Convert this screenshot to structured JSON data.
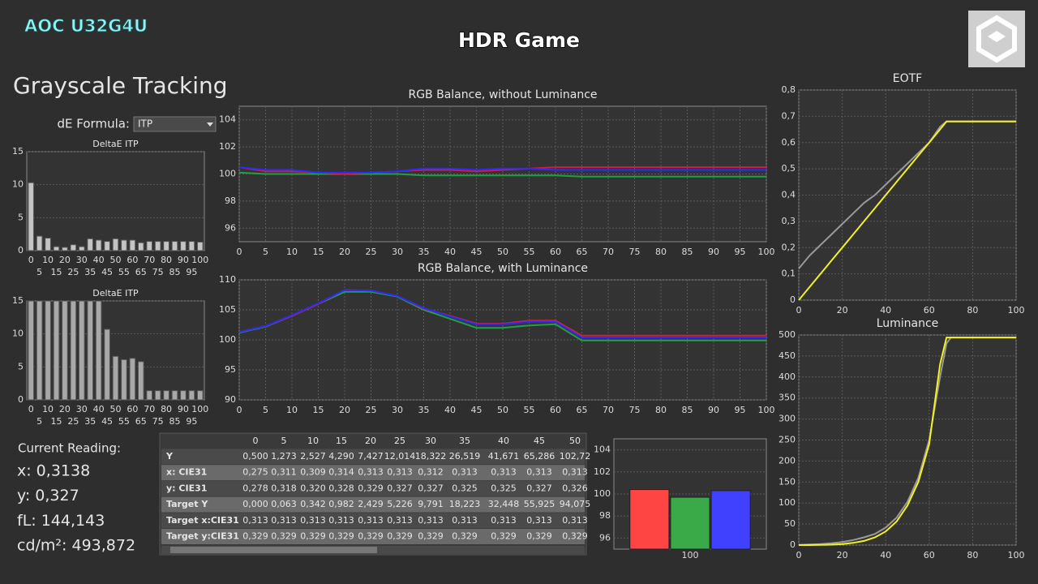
{
  "header": {
    "monitor": "AOC U32G4U",
    "mode": "HDR Game"
  },
  "panel": {
    "title": "Grayscale Tracking",
    "de_formula_label": "dE Formula:",
    "de_formula": "ITP"
  },
  "reading": {
    "title": "Current Reading:",
    "lines": [
      "x: 0,3138",
      "y: 0,327",
      "fL: 144,143",
      "cd/m²: 493,872"
    ]
  },
  "table": {
    "header": [
      "0",
      "5",
      "10",
      "15",
      "20",
      "25",
      "30",
      "35",
      "40",
      "45",
      "50"
    ],
    "rows": [
      [
        "Y",
        "0,500",
        "1,273",
        "2,527",
        "4,290",
        "7,427",
        "12,014",
        "18,322",
        "26,519",
        "41,671",
        "65,286",
        "102,72"
      ],
      [
        "x: CIE31",
        "0,275",
        "0,311",
        "0,309",
        "0,314",
        "0,313",
        "0,313",
        "0,312",
        "0,313",
        "0,313",
        "0,313",
        "0,313"
      ],
      [
        "y: CIE31",
        "0,278",
        "0,318",
        "0,320",
        "0,328",
        "0,329",
        "0,327",
        "0,327",
        "0,325",
        "0,325",
        "0,327",
        "0,326"
      ],
      [
        "Target Y",
        "0,000",
        "0,063",
        "0,342",
        "0,982",
        "2,429",
        "5,226",
        "9,791",
        "18,223",
        "32,448",
        "55,925",
        "94,075"
      ],
      [
        "Target x:CIE31",
        "0,313",
        "0,313",
        "0,313",
        "0,313",
        "0,313",
        "0,313",
        "0,313",
        "0,313",
        "0,313",
        "0,313",
        "0,313"
      ],
      [
        "Target y:CIE31",
        "0,329",
        "0,329",
        "0,329",
        "0,329",
        "0,329",
        "0,329",
        "0,329",
        "0,329",
        "0,329",
        "0,329",
        "0,329"
      ]
    ]
  },
  "chart_data": [
    {
      "type": "bar",
      "title": "DeltaE ITP",
      "categories": [
        "0",
        "5",
        "10",
        "15",
        "20",
        "25",
        "30",
        "35",
        "40",
        "45",
        "50",
        "55",
        "60",
        "65",
        "70",
        "75",
        "80",
        "85",
        "90",
        "95",
        "100"
      ],
      "values": [
        10.3,
        2.2,
        1.9,
        0.6,
        0.5,
        0.9,
        0.6,
        1.8,
        1.6,
        1.4,
        1.8,
        1.6,
        1.6,
        1.2,
        1.4,
        1.4,
        1.4,
        1.4,
        1.4,
        1.4,
        1.3
      ],
      "color": "#c4c4c4",
      "ylim": [
        0,
        15
      ],
      "yticks": [
        0,
        5,
        10,
        15
      ],
      "grid": true
    },
    {
      "type": "bar",
      "title": "DeltaE ITP",
      "categories": [
        "0",
        "5",
        "10",
        "15",
        "20",
        "25",
        "30",
        "35",
        "40",
        "45",
        "50",
        "55",
        "60",
        "65",
        "70",
        "75",
        "80",
        "85",
        "90",
        "95",
        "100"
      ],
      "values": [
        15,
        15,
        15,
        15,
        15,
        15,
        15,
        15,
        15,
        10.7,
        6.6,
        6.1,
        6.3,
        5.8,
        1.4,
        1.4,
        1.4,
        1.4,
        1.4,
        1.4,
        1.4
      ],
      "color": "#a8a8a8",
      "ylim": [
        0,
        15
      ],
      "yticks": [
        0,
        5,
        10,
        15
      ],
      "grid": true
    },
    {
      "type": "line",
      "title": "RGB Balance, without Luminance",
      "x": [
        0,
        5,
        10,
        15,
        20,
        25,
        30,
        35,
        40,
        45,
        50,
        55,
        60,
        65,
        70,
        75,
        80,
        85,
        90,
        95,
        100
      ],
      "series": [
        {
          "color": "#1fa045",
          "values": [
            100.1,
            100.0,
            100.0,
            100.0,
            100.0,
            100.0,
            100.0,
            99.9,
            99.9,
            99.9,
            99.9,
            99.9,
            99.9,
            99.8,
            99.8,
            99.8,
            99.8,
            99.8,
            99.8,
            99.8,
            99.8
          ]
        },
        {
          "color": "#d0203a",
          "values": [
            100.5,
            100.2,
            100.2,
            100.1,
            100.0,
            100.1,
            100.2,
            100.3,
            100.3,
            100.2,
            100.3,
            100.4,
            100.5,
            100.5,
            100.5,
            100.5,
            100.5,
            100.5,
            100.5,
            100.5,
            100.5
          ]
        },
        {
          "color": "#2b2bff",
          "values": [
            100.5,
            100.3,
            100.3,
            100.1,
            100.1,
            100.1,
            100.2,
            100.4,
            100.4,
            100.3,
            100.4,
            100.4,
            100.3,
            100.3,
            100.3,
            100.3,
            100.3,
            100.3,
            100.3,
            100.3,
            100.3
          ]
        }
      ],
      "xlim": [
        0,
        100
      ],
      "xticks": [
        0,
        5,
        10,
        15,
        20,
        25,
        30,
        35,
        40,
        45,
        50,
        55,
        60,
        65,
        70,
        75,
        80,
        85,
        90,
        95,
        100
      ],
      "ylim": [
        95,
        105
      ],
      "yticks": [
        96,
        98,
        100,
        102,
        104
      ],
      "grid": true
    },
    {
      "type": "line",
      "title": "RGB Balance, with Luminance",
      "x": [
        0,
        5,
        10,
        15,
        20,
        25,
        30,
        35,
        40,
        45,
        50,
        55,
        60,
        65,
        70,
        75,
        80,
        85,
        90,
        95,
        100
      ],
      "series": [
        {
          "color": "#1fa045",
          "values": [
            101.2,
            102.2,
            104.0,
            106.0,
            108.0,
            108.0,
            107.2,
            105.0,
            103.5,
            102.0,
            102.0,
            102.4,
            102.6,
            99.9,
            99.9,
            99.9,
            99.9,
            99.9,
            99.9,
            99.9,
            99.9
          ]
        },
        {
          "color": "#d0203a",
          "values": [
            101.3,
            102.3,
            104.0,
            106.0,
            108.3,
            108.2,
            107.3,
            105.2,
            104.0,
            102.7,
            102.7,
            103.2,
            103.2,
            100.7,
            100.7,
            100.7,
            100.7,
            100.7,
            100.7,
            100.7,
            100.7
          ]
        },
        {
          "color": "#2b2bff",
          "values": [
            101.3,
            102.3,
            104.1,
            106.1,
            108.3,
            108.2,
            107.3,
            105.3,
            103.9,
            102.6,
            102.6,
            103.0,
            103.0,
            100.4,
            100.4,
            100.4,
            100.4,
            100.4,
            100.4,
            100.4,
            100.4
          ]
        }
      ],
      "xlim": [
        0,
        100
      ],
      "xticks": [
        0,
        5,
        10,
        15,
        20,
        25,
        30,
        35,
        40,
        45,
        50,
        55,
        60,
        65,
        70,
        75,
        80,
        85,
        90,
        95,
        100
      ],
      "ylim": [
        90,
        110
      ],
      "yticks": [
        90,
        95,
        100,
        105,
        110
      ],
      "grid": true
    },
    {
      "type": "bar",
      "categories": [
        "100"
      ],
      "series": [
        {
          "color": "#ff4444",
          "values": [
            100.4
          ]
        },
        {
          "color": "#3aaa48",
          "values": [
            99.7
          ]
        },
        {
          "color": "#4040ff",
          "values": [
            100.3
          ]
        }
      ],
      "ylim": [
        95,
        105
      ],
      "yticks": [
        96,
        98,
        100,
        102,
        104
      ],
      "grid": true
    },
    {
      "type": "line",
      "title": "EOTF",
      "x": [
        0,
        5,
        10,
        15,
        20,
        25,
        30,
        35,
        40,
        45,
        50,
        55,
        60,
        65,
        68,
        70,
        75,
        80,
        85,
        90,
        95,
        100
      ],
      "series": [
        {
          "color": "#9a9a9a",
          "values": [
            0.12,
            0.17,
            0.21,
            0.25,
            0.29,
            0.33,
            0.37,
            0.4,
            0.44,
            0.48,
            0.52,
            0.56,
            0.6,
            0.66,
            0.68,
            0.68,
            0.68,
            0.68,
            0.68,
            0.68,
            0.68,
            0.68
          ]
        },
        {
          "color": "#f2f222",
          "values": [
            0.0,
            0.05,
            0.1,
            0.15,
            0.2,
            0.25,
            0.3,
            0.35,
            0.4,
            0.45,
            0.5,
            0.55,
            0.6,
            0.65,
            0.68,
            0.68,
            0.68,
            0.68,
            0.68,
            0.68,
            0.68,
            0.68
          ]
        }
      ],
      "xlim": [
        0,
        100
      ],
      "xticks": [
        0,
        20,
        40,
        60,
        80,
        100
      ],
      "ylim": [
        0,
        0.8
      ],
      "yticks": [
        0,
        {
          "value": 0.1,
          "label": "0,1"
        },
        {
          "value": 0.2,
          "label": "0,2"
        },
        {
          "value": 0.3,
          "label": "0,3"
        },
        {
          "value": 0.4,
          "label": "0,4"
        },
        {
          "value": 0.5,
          "label": "0,5"
        },
        {
          "value": 0.6,
          "label": "0,6"
        },
        {
          "value": 0.7,
          "label": "0,7"
        },
        {
          "value": 0.8,
          "label": "0,8"
        }
      ],
      "grid": true
    },
    {
      "type": "line",
      "title": "Luminance",
      "x": [
        0,
        5,
        10,
        15,
        20,
        25,
        30,
        35,
        40,
        45,
        50,
        55,
        60,
        65,
        68,
        70,
        75,
        80,
        85,
        90,
        95,
        100
      ],
      "series": [
        {
          "color": "#9a9a9a",
          "values": [
            0.5,
            1.3,
            2.5,
            4.3,
            7.4,
            12.0,
            18.3,
            26.5,
            41.7,
            65.3,
            102.7,
            160,
            250,
            400,
            480,
            494,
            494,
            494,
            494,
            494,
            494,
            494
          ]
        },
        {
          "color": "#f2f222",
          "values": [
            0,
            0.06,
            0.34,
            0.98,
            2.43,
            5.23,
            9.79,
            18.2,
            32.4,
            55.9,
            94.1,
            150,
            240,
            430,
            494,
            494,
            494,
            494,
            494,
            494,
            494,
            494
          ]
        }
      ],
      "xlim": [
        0,
        100
      ],
      "xticks": [
        0,
        20,
        40,
        60,
        80,
        100
      ],
      "ylim": [
        0,
        500
      ],
      "yticks": [
        0,
        50,
        100,
        150,
        200,
        250,
        300,
        350,
        400,
        450,
        500
      ],
      "grid": true
    }
  ]
}
